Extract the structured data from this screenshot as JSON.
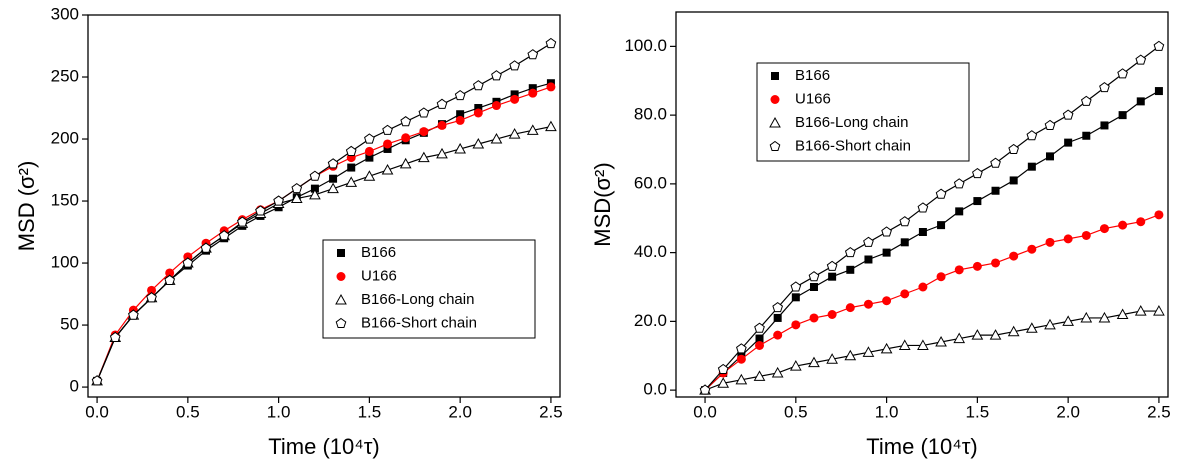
{
  "chart_data": [
    {
      "type": "scatter",
      "legend": "lower right",
      "x_label": "Time (10⁴τ)",
      "y_label": "MSD (σ²)",
      "xlim": [
        -0.05,
        2.55
      ],
      "ylim": [
        -8,
        300
      ],
      "xticks": [
        {
          "value": 0,
          "label": "0.0"
        },
        {
          "value": 0.5,
          "label": "0.5"
        },
        {
          "value": 1,
          "label": "1.0"
        },
        {
          "value": 1.5,
          "label": "1.5"
        },
        {
          "value": 2,
          "label": "2.0"
        },
        {
          "value": 2.5,
          "label": "2.5"
        }
      ],
      "yticks": [
        0,
        50,
        100,
        150,
        200,
        250,
        300
      ],
      "x": [
        0,
        0.1,
        0.2,
        0.3,
        0.4,
        0.5,
        0.6,
        0.7,
        0.8,
        0.9,
        1.0,
        1.1,
        1.2,
        1.3,
        1.4,
        1.5,
        1.6,
        1.7,
        1.8,
        1.9,
        2.0,
        2.1,
        2.2,
        2.3,
        2.4,
        2.5
      ],
      "series": [
        {
          "name": "B166",
          "color": "#000000",
          "marker": "square",
          "values": [
            5,
            40,
            58,
            72,
            86,
            98,
            110,
            120,
            130,
            138,
            145,
            153,
            160,
            168,
            177,
            185,
            192,
            199,
            205,
            212,
            220,
            225,
            230,
            236,
            241,
            245
          ]
        },
        {
          "name": "U166",
          "color": "#ff0000",
          "marker": "circle",
          "values": [
            5,
            42,
            62,
            78,
            92,
            105,
            116,
            126,
            135,
            143,
            150,
            160,
            170,
            178,
            185,
            190,
            196,
            201,
            206,
            211,
            215,
            221,
            227,
            232,
            237,
            242
          ]
        },
        {
          "name": "B166-Long chain",
          "color": "#000000",
          "marker": "triangle",
          "values": [
            5,
            40,
            58,
            72,
            86,
            100,
            112,
            122,
            132,
            140,
            148,
            152,
            155,
            160,
            165,
            170,
            175,
            180,
            185,
            188,
            192,
            196,
            200,
            204,
            207,
            210
          ]
        },
        {
          "name": "B166-Short chain",
          "color": "#000000",
          "marker": "pentagon",
          "values": [
            5,
            40,
            58,
            72,
            86,
            100,
            112,
            122,
            133,
            142,
            150,
            160,
            170,
            180,
            190,
            200,
            207,
            214,
            221,
            228,
            235,
            243,
            251,
            259,
            268,
            277
          ]
        }
      ]
    },
    {
      "type": "scatter",
      "legend": "upper left",
      "x_label": "Time (10⁴τ)",
      "y_label": "MSD(σ²)",
      "xlim": [
        -0.16,
        2.55
      ],
      "ylim": [
        -2,
        110
      ],
      "xticks": [
        {
          "value": 0,
          "label": "0.0"
        },
        {
          "value": 0.5,
          "label": "0.5"
        },
        {
          "value": 1,
          "label": "1.0"
        },
        {
          "value": 1.5,
          "label": "1.5"
        },
        {
          "value": 2,
          "label": "2.0"
        },
        {
          "value": 2.5,
          "label": "2.5"
        }
      ],
      "yticks": [
        {
          "value": 0,
          "label": "0.0"
        },
        {
          "value": 20,
          "label": "20.0"
        },
        {
          "value": 40,
          "label": "40.0"
        },
        {
          "value": 60,
          "label": "60.0"
        },
        {
          "value": 80,
          "label": "80.0"
        },
        {
          "value": 100,
          "label": "100.0"
        }
      ],
      "x": [
        0,
        0.1,
        0.2,
        0.3,
        0.4,
        0.5,
        0.6,
        0.7,
        0.8,
        0.9,
        1.0,
        1.1,
        1.2,
        1.3,
        1.4,
        1.5,
        1.6,
        1.7,
        1.8,
        1.9,
        2.0,
        2.1,
        2.2,
        2.3,
        2.4,
        2.5
      ],
      "series": [
        {
          "name": "B166",
          "color": "#000000",
          "marker": "square",
          "values": [
            0,
            5,
            10,
            15,
            21,
            27,
            30,
            33,
            35,
            38,
            40,
            43,
            46,
            48,
            52,
            55,
            58,
            61,
            65,
            68,
            72,
            74,
            77,
            80,
            84,
            87
          ]
        },
        {
          "name": "U166",
          "color": "#ff0000",
          "marker": "circle",
          "values": [
            0,
            5,
            9,
            13,
            16,
            19,
            21,
            22,
            24,
            25,
            26,
            28,
            30,
            33,
            35,
            36,
            37,
            39,
            41,
            43,
            44,
            45,
            47,
            48,
            49,
            51
          ]
        },
        {
          "name": "B166-Long chain",
          "color": "#000000",
          "marker": "triangle",
          "values": [
            0,
            2,
            3,
            4,
            5,
            7,
            8,
            9,
            10,
            11,
            12,
            13,
            13,
            14,
            15,
            16,
            16,
            17,
            18,
            19,
            20,
            21,
            21,
            22,
            23,
            23
          ]
        },
        {
          "name": "B166-Short chain",
          "color": "#000000",
          "marker": "pentagon",
          "values": [
            0,
            6,
            12,
            18,
            24,
            30,
            33,
            36,
            40,
            43,
            46,
            49,
            53,
            57,
            60,
            63,
            66,
            70,
            74,
            77,
            80,
            84,
            88,
            92,
            96,
            100
          ]
        }
      ]
    }
  ]
}
